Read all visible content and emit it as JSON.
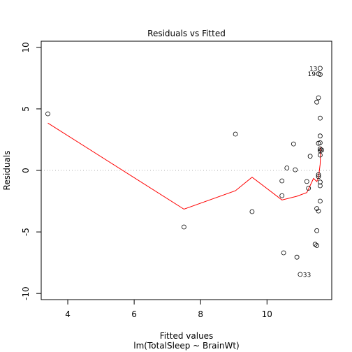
{
  "chart_data": {
    "type": "scatter",
    "title": "Residuals vs Fitted",
    "xlabel": "Fitted values",
    "ylabel": "Residuals",
    "subtitle": "lm(TotalSleep ~ BrainWt)",
    "xlim": [
      3.2,
      11.95
    ],
    "ylim": [
      -10.5,
      10.5
    ],
    "xticks": [
      4,
      6,
      8,
      10
    ],
    "yticks": [
      -10,
      -5,
      0,
      5,
      10
    ],
    "grid": false,
    "zero_line": true,
    "points": [
      {
        "x": 3.4,
        "y": 4.6
      },
      {
        "x": 7.5,
        "y": -4.6
      },
      {
        "x": 9.05,
        "y": 2.95
      },
      {
        "x": 9.55,
        "y": -3.35
      },
      {
        "x": 10.45,
        "y": -0.85
      },
      {
        "x": 10.45,
        "y": -2.05
      },
      {
        "x": 10.5,
        "y": -6.7
      },
      {
        "x": 10.6,
        "y": 0.2
      },
      {
        "x": 10.8,
        "y": 2.15
      },
      {
        "x": 10.85,
        "y": 0.05
      },
      {
        "x": 10.9,
        "y": -7.05
      },
      {
        "x": 11.0,
        "y": -8.45
      },
      {
        "x": 11.2,
        "y": -0.9
      },
      {
        "x": 11.25,
        "y": -1.45
      },
      {
        "x": 11.3,
        "y": 1.15
      },
      {
        "x": 11.45,
        "y": -6.0
      },
      {
        "x": 11.5,
        "y": -6.1
      },
      {
        "x": 11.5,
        "y": 5.55
      },
      {
        "x": 11.55,
        "y": 5.9
      },
      {
        "x": 11.5,
        "y": -3.1
      },
      {
        "x": 11.5,
        "y": -4.9
      },
      {
        "x": 11.55,
        "y": -0.35
      },
      {
        "x": 11.55,
        "y": -0.5
      },
      {
        "x": 11.55,
        "y": 2.2
      },
      {
        "x": 11.6,
        "y": 4.25
      },
      {
        "x": 11.6,
        "y": 2.8
      },
      {
        "x": 11.6,
        "y": 1.75
      },
      {
        "x": 11.6,
        "y": 1.6
      },
      {
        "x": 11.6,
        "y": 1.25
      },
      {
        "x": 11.65,
        "y": 1.65
      },
      {
        "x": 11.6,
        "y": 2.25
      },
      {
        "x": 11.6,
        "y": -0.95
      },
      {
        "x": 11.6,
        "y": -1.25
      },
      {
        "x": 11.6,
        "y": -2.5
      },
      {
        "x": 11.55,
        "y": -3.3
      },
      {
        "x": 11.55,
        "y": 7.85
      },
      {
        "x": 11.6,
        "y": 7.8
      },
      {
        "x": 11.6,
        "y": 8.3
      }
    ],
    "smooth_line": {
      "color": "#ff0000",
      "x": [
        3.4,
        7.5,
        9.05,
        9.55,
        10.45,
        10.9,
        11.2,
        11.4,
        11.5,
        11.55,
        11.6,
        11.62
      ],
      "y": [
        3.85,
        -3.15,
        -1.65,
        -0.55,
        -2.4,
        -2.1,
        -1.8,
        -0.65,
        -0.9,
        -0.6,
        0.5,
        1.9
      ]
    },
    "point_labels": [
      {
        "text": "13",
        "x": 11.6,
        "y": 8.3,
        "side": "left"
      },
      {
        "text": "19",
        "x": 11.55,
        "y": 7.85,
        "side": "left"
      },
      {
        "text": "33",
        "x": 11.0,
        "y": -8.45,
        "side": "right"
      }
    ]
  }
}
